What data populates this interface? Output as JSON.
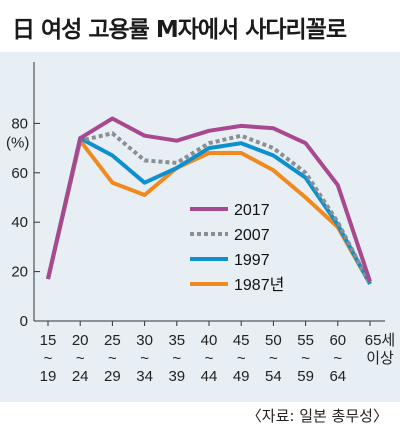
{
  "header": {
    "title": "日 여성 고용률 M자에서 사다리꼴로"
  },
  "footer": {
    "source": "〈자료: 일본 총무성〉"
  },
  "chart_data": {
    "type": "line",
    "title": "日 여성 고용률 M자에서 사다리꼴로",
    "ylabel": "(%)",
    "ylim": [
      0,
      85
    ],
    "yticks": [
      0,
      20,
      40,
      60,
      80
    ],
    "categories": [
      [
        "15",
        "~",
        "19"
      ],
      [
        "20",
        "~",
        "24"
      ],
      [
        "25",
        "~",
        "29"
      ],
      [
        "30",
        "~",
        "34"
      ],
      [
        "35",
        "~",
        "39"
      ],
      [
        "40",
        "~",
        "44"
      ],
      [
        "45",
        "~",
        "49"
      ],
      [
        "50",
        "~",
        "54"
      ],
      [
        "55",
        "~",
        "59"
      ],
      [
        "60",
        "~",
        "64"
      ],
      [
        "65세",
        "이상"
      ]
    ],
    "series": [
      {
        "name": "2017",
        "color": "#a8488f",
        "dash": "",
        "values": [
          17,
          74,
          82,
          75,
          73,
          77,
          79,
          78,
          72,
          55,
          16
        ]
      },
      {
        "name": "2007",
        "color": "#8a8f94",
        "dash": "4 3",
        "values": [
          17,
          73,
          76,
          65,
          64,
          72,
          75,
          70,
          60,
          40,
          15
        ]
      },
      {
        "name": "1997",
        "color": "#0e8fce",
        "dash": "",
        "values": [
          17,
          74,
          67,
          56,
          62,
          70,
          72,
          67,
          58,
          39,
          15
        ]
      },
      {
        "name": "1987년",
        "color": "#f08a1e",
        "dash": "",
        "values": [
          17,
          73,
          56,
          51,
          62,
          68,
          68,
          61,
          50,
          38,
          15
        ]
      }
    ],
    "legend_position": "center-right",
    "grid": false
  }
}
